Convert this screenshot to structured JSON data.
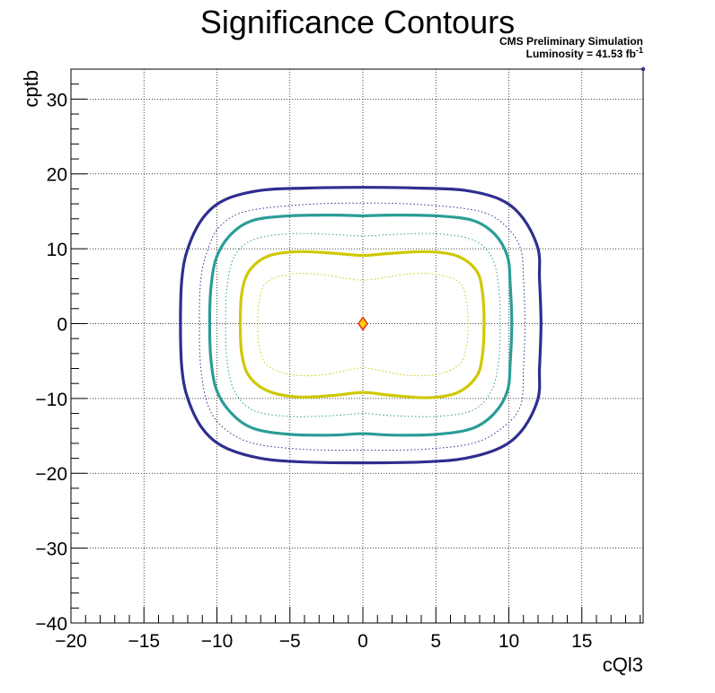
{
  "chart_data": {
    "type": "contour",
    "title": "Significance Contours",
    "xlabel": "cQl3",
    "ylabel": "cptb",
    "xlim": [
      -20,
      19.2
    ],
    "ylim": [
      -40,
      34
    ],
    "x_ticks": [
      -20,
      -15,
      -10,
      -5,
      0,
      5,
      10,
      15
    ],
    "y_ticks": [
      -40,
      -30,
      -20,
      -10,
      0,
      10,
      20,
      30
    ],
    "grid": true,
    "annotations": {
      "line1": "CMS Preliminary Simulation",
      "line2_prefix": "Luminosity = 41.53 fb",
      "line2_sup": "-1"
    },
    "best_fit": {
      "x": 0,
      "y": 0,
      "fill": "#ffd000",
      "stroke": "#e0301e"
    },
    "series": [
      {
        "color": "#2e2e8f",
        "style": "solid",
        "width": 3.2,
        "points": [
          [
            -12.5,
            0
          ],
          [
            -12.4,
            -6
          ],
          [
            -12,
            -10
          ],
          [
            -11,
            -14
          ],
          [
            -9.5,
            -16.5
          ],
          [
            -7,
            -18
          ],
          [
            -4,
            -18.5
          ],
          [
            0,
            -18.6
          ],
          [
            4,
            -18.5
          ],
          [
            7,
            -18
          ],
          [
            9.5,
            -16.5
          ],
          [
            11,
            -14
          ],
          [
            12,
            -10
          ],
          [
            12.1,
            -6
          ],
          [
            12.2,
            0
          ],
          [
            12.1,
            6
          ],
          [
            12,
            10
          ],
          [
            11,
            14
          ],
          [
            9.5,
            16.5
          ],
          [
            7,
            17.8
          ],
          [
            4,
            18.1
          ],
          [
            0,
            18.2
          ],
          [
            -4,
            18.1
          ],
          [
            -7,
            17.8
          ],
          [
            -9.5,
            16.5
          ],
          [
            -11,
            14
          ],
          [
            -12,
            10
          ],
          [
            -12.4,
            6
          ]
        ]
      },
      {
        "color": "#2e2e8f",
        "style": "dotted",
        "width": 1,
        "points": [
          [
            -11.2,
            0
          ],
          [
            -11.1,
            -6
          ],
          [
            -10.6,
            -11
          ],
          [
            -9.5,
            -14
          ],
          [
            -7.5,
            -16
          ],
          [
            -4,
            -16.8
          ],
          [
            0,
            -16.9
          ],
          [
            4,
            -16.8
          ],
          [
            7.5,
            -16
          ],
          [
            9.5,
            -14
          ],
          [
            10.8,
            -11
          ],
          [
            11,
            -6
          ],
          [
            11.1,
            0
          ],
          [
            11,
            6
          ],
          [
            10.8,
            10
          ],
          [
            9.8,
            13
          ],
          [
            8,
            15
          ],
          [
            4,
            15.9
          ],
          [
            0,
            16.1
          ],
          [
            -4,
            15.9
          ],
          [
            -8,
            15
          ],
          [
            -9.8,
            13
          ],
          [
            -10.6,
            10
          ],
          [
            -11.1,
            6
          ]
        ]
      },
      {
        "color": "#2a9d96",
        "style": "solid",
        "width": 3.2,
        "points": [
          [
            -10.5,
            0
          ],
          [
            -10.4,
            -5
          ],
          [
            -10,
            -9
          ],
          [
            -9,
            -12
          ],
          [
            -7.5,
            -14
          ],
          [
            -5,
            -14.8
          ],
          [
            -2,
            -14.9
          ],
          [
            0,
            -14.7
          ],
          [
            2,
            -14.9
          ],
          [
            5,
            -14.8
          ],
          [
            7.5,
            -14
          ],
          [
            9,
            -12
          ],
          [
            9.9,
            -9
          ],
          [
            10.1,
            -5
          ],
          [
            10.2,
            0
          ],
          [
            10.1,
            5
          ],
          [
            9.9,
            9
          ],
          [
            9,
            12
          ],
          [
            7.5,
            13.8
          ],
          [
            5,
            14.4
          ],
          [
            2,
            14.5
          ],
          [
            0,
            14.4
          ],
          [
            -2,
            14.5
          ],
          [
            -5,
            14.4
          ],
          [
            -7.5,
            13.8
          ],
          [
            -9,
            12
          ],
          [
            -10,
            9
          ],
          [
            -10.4,
            5
          ]
        ]
      },
      {
        "color": "#2a9d96",
        "style": "dotted",
        "width": 1,
        "points": [
          [
            -9.4,
            0
          ],
          [
            -9.3,
            -5
          ],
          [
            -8.8,
            -9
          ],
          [
            -7.5,
            -11.6
          ],
          [
            -5,
            -12.4
          ],
          [
            -2,
            -12.3
          ],
          [
            0,
            -12
          ],
          [
            2,
            -12.3
          ],
          [
            5,
            -12.4
          ],
          [
            7.5,
            -11.6
          ],
          [
            8.8,
            -9
          ],
          [
            9.3,
            -5
          ],
          [
            9.4,
            0
          ],
          [
            9.3,
            5
          ],
          [
            8.8,
            9
          ],
          [
            7.5,
            11.2
          ],
          [
            5,
            12
          ],
          [
            2,
            11.9
          ],
          [
            0,
            11.7
          ],
          [
            -2,
            11.9
          ],
          [
            -5,
            12
          ],
          [
            -7.5,
            11.2
          ],
          [
            -8.8,
            9
          ],
          [
            -9.3,
            5
          ]
        ]
      },
      {
        "color": "#cfc800",
        "style": "solid",
        "width": 3.2,
        "points": [
          [
            -8.4,
            0
          ],
          [
            -8.3,
            -4
          ],
          [
            -7.8,
            -7
          ],
          [
            -6.5,
            -9
          ],
          [
            -4.5,
            -9.8
          ],
          [
            -2,
            -9.6
          ],
          [
            0,
            -9.2
          ],
          [
            2,
            -9.6
          ],
          [
            4.5,
            -9.9
          ],
          [
            6.5,
            -9.2
          ],
          [
            7.8,
            -7
          ],
          [
            8.2,
            -4
          ],
          [
            8.3,
            0
          ],
          [
            8.2,
            4
          ],
          [
            7.8,
            7
          ],
          [
            6.5,
            9
          ],
          [
            4.5,
            9.6
          ],
          [
            2,
            9.4
          ],
          [
            0,
            9.1
          ],
          [
            -2,
            9.4
          ],
          [
            -4.5,
            9.6
          ],
          [
            -6.5,
            9
          ],
          [
            -7.8,
            7
          ],
          [
            -8.3,
            4
          ]
        ]
      },
      {
        "color": "#cfc800",
        "style": "dotted",
        "width": 1,
        "points": [
          [
            -7.2,
            0
          ],
          [
            -7.1,
            -3
          ],
          [
            -6.6,
            -5.5
          ],
          [
            -5,
            -6.8
          ],
          [
            -3,
            -6.9
          ],
          [
            -1,
            -6.2
          ],
          [
            0,
            -5.9
          ],
          [
            1,
            -6.2
          ],
          [
            3,
            -6.9
          ],
          [
            5,
            -6.8
          ],
          [
            6.6,
            -5.5
          ],
          [
            7.1,
            -3
          ],
          [
            7.2,
            0
          ],
          [
            7.1,
            3
          ],
          [
            6.6,
            5.5
          ],
          [
            5,
            6.6
          ],
          [
            3,
            6.6
          ],
          [
            1,
            6
          ],
          [
            0,
            5.8
          ],
          [
            -1,
            6
          ],
          [
            -3,
            6.6
          ],
          [
            -5,
            6.6
          ],
          [
            -6.6,
            5.5
          ],
          [
            -7.1,
            3
          ]
        ]
      }
    ]
  }
}
